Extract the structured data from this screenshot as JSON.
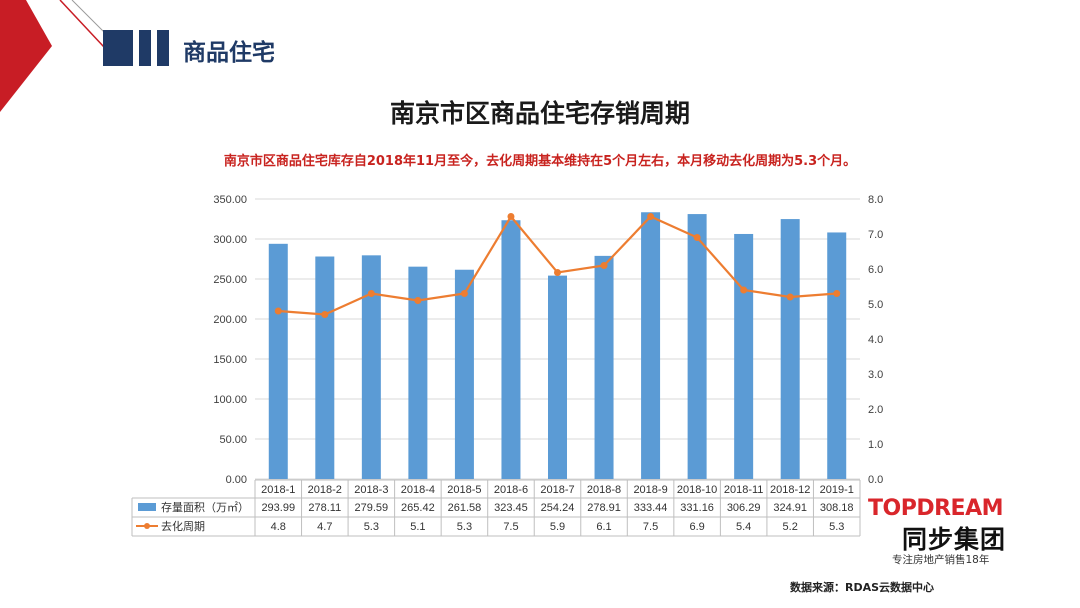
{
  "header": {
    "title": "商品住宅"
  },
  "brand": {
    "name_en": "TOPDREAM",
    "name_cn": "同步集团",
    "slogan": "专注房地产销售18年"
  },
  "footer": {
    "source": "数据来源：RDAS云数据中心"
  },
  "colors": {
    "bar": "#5b9bd5",
    "line": "#ed7d31",
    "accent_red": "#c8231f",
    "navy": "#1f3a66"
  },
  "chart_data": {
    "type": "bar",
    "title": "南京市区商品住宅存销周期",
    "subtitle": "南京市区商品住宅库存自2018年11月至今，去化周期基本维持在5个月左右，本月移动去化周期为5.3个月。",
    "categories": [
      "2018-1",
      "2018-2",
      "2018-3",
      "2018-4",
      "2018-5",
      "2018-6",
      "2018-7",
      "2018-8",
      "2018-9",
      "2018-10",
      "2018-11",
      "2018-12",
      "2019-1"
    ],
    "series": [
      {
        "name": "存量面积（万㎡）",
        "type": "bar",
        "axis": "left",
        "values": [
          293.99,
          278.11,
          279.59,
          265.42,
          261.58,
          323.45,
          254.24,
          278.91,
          333.44,
          331.16,
          306.29,
          324.91,
          308.18
        ]
      },
      {
        "name": "去化周期",
        "type": "line",
        "axis": "right",
        "values": [
          4.8,
          4.7,
          5.3,
          5.1,
          5.3,
          7.5,
          5.9,
          6.1,
          7.5,
          6.9,
          5.4,
          5.2,
          5.3
        ]
      }
    ],
    "left_axis": {
      "min": 0,
      "max": 350,
      "step": 50,
      "ticks": [
        "0.00",
        "50.00",
        "100.00",
        "150.00",
        "200.00",
        "250.00",
        "300.00",
        "350.00"
      ]
    },
    "right_axis": {
      "min": 0,
      "max": 8,
      "step": 1,
      "ticks": [
        "0.0",
        "1.0",
        "2.0",
        "3.0",
        "4.0",
        "5.0",
        "6.0",
        "7.0",
        "8.0"
      ]
    },
    "grid": true,
    "legend": "bottom data table"
  }
}
